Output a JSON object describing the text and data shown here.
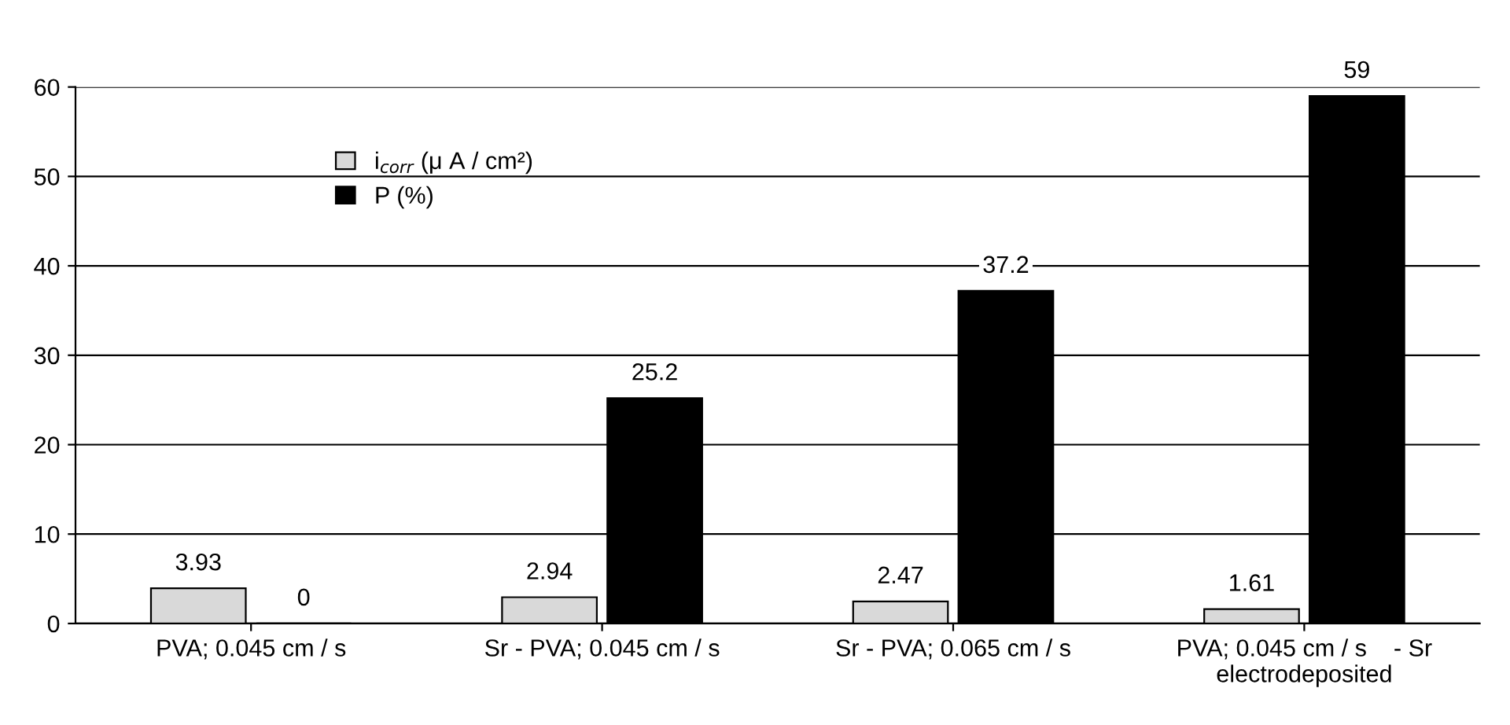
{
  "chart_data": {
    "type": "bar",
    "categories": [
      "PVA; 0.045 cm / s",
      "Sr - PVA; 0.045 cm / s",
      "Sr - PVA; 0.065 cm / s",
      "PVA; 0.045 cm / s    - Sr\nelectrodeposited"
    ],
    "series": [
      {
        "name": "i$_{corr}$ (μ A / cm²)",
        "color": "#d9d9d9",
        "values": [
          3.93,
          2.94,
          2.47,
          1.61
        ]
      },
      {
        "name": "P (%)",
        "color": "#000000",
        "values": [
          0,
          25.2,
          37.2,
          59
        ]
      }
    ],
    "ylim": [
      0,
      60
    ],
    "yticks": [
      0,
      10,
      20,
      30,
      40,
      50,
      60
    ],
    "grid": "y",
    "legend": "top left",
    "data_labels": true
  }
}
